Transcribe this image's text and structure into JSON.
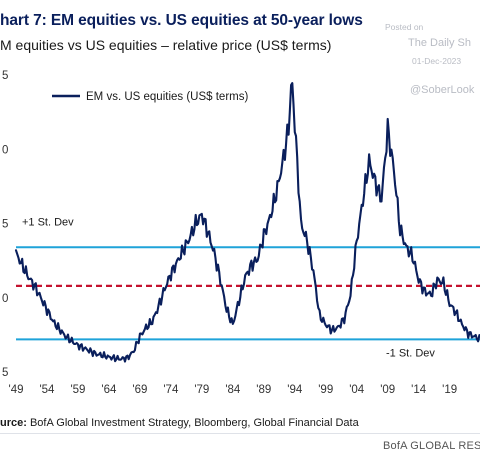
{
  "header": {
    "title": "hart 7: EM equities vs. US equities at 50-year lows",
    "subtitle": "M equities vs US equities – relative price (US$ terms)"
  },
  "watermark": {
    "posted": "Posted on",
    "site": "The Daily Sh",
    "date": "01-Dec-2023",
    "handle": "@SoberLook"
  },
  "source": {
    "label": "urce:",
    "text": " BofA Global Investment Strategy, Bloomberg, Global Financial Data"
  },
  "footer": {
    "brand": "BofA GLOBAL RESEA"
  },
  "colors": {
    "title": "#0a1f5c",
    "series": "#0a1f5c",
    "stdev_line": "#1fa3d9",
    "mean_line": "#c4122f"
  },
  "chart_data": {
    "type": "line",
    "title": "hart 7: EM equities vs. US equities at 50-year lows",
    "xlabel": "",
    "ylabel": "",
    "x_tick_labels": [
      "'49",
      "'54",
      "'59",
      "'64",
      "'69",
      "'74",
      "'79",
      "'84",
      "'89",
      "'94",
      "'99",
      "'04",
      "'09",
      "'14",
      "'19"
    ],
    "y_tick_labels": [
      "5",
      "0",
      "5",
      "0",
      "5"
    ],
    "xlim": [
      1949,
      2023.9
    ],
    "ylim": [
      0.0,
      5.0
    ],
    "grid": false,
    "legend": {
      "position": "top-left",
      "entries": [
        "EM vs. US equities (US$ terms)"
      ]
    },
    "series": [
      {
        "name": "EM vs. US equities (US$ terms)",
        "x": [
          1949,
          1950,
          1951,
          1952,
          1953,
          1954,
          1955,
          1956,
          1957,
          1958,
          1959,
          1960,
          1961,
          1962,
          1963,
          1964,
          1965,
          1966,
          1967,
          1968,
          1969,
          1970,
          1971,
          1972,
          1973,
          1974,
          1975,
          1976,
          1977,
          1978,
          1979,
          1980,
          1981,
          1982,
          1983,
          1984,
          1985,
          1986,
          1987,
          1988,
          1989,
          1990,
          1991,
          1992,
          1993,
          1993.5,
          1994,
          1995,
          1996,
          1997,
          1998,
          1999,
          2000,
          2001,
          2002,
          2003,
          2004,
          2005,
          2006,
          2007,
          2008,
          2009,
          2010,
          2011,
          2012,
          2013,
          2014,
          2015,
          2016,
          2017,
          2018,
          2019,
          2020,
          2021,
          2022,
          2023.9
        ],
        "y": [
          2.0,
          1.8,
          1.6,
          1.45,
          1.25,
          1.05,
          0.85,
          0.72,
          0.6,
          0.52,
          0.45,
          0.4,
          0.35,
          0.3,
          0.28,
          0.25,
          0.23,
          0.22,
          0.24,
          0.35,
          0.6,
          0.75,
          0.85,
          1.1,
          1.4,
          1.65,
          1.85,
          2.05,
          2.25,
          2.5,
          2.65,
          2.35,
          2.0,
          1.55,
          1.05,
          0.8,
          1.2,
          1.6,
          1.8,
          1.9,
          2.3,
          2.6,
          3.0,
          3.5,
          4.1,
          4.95,
          4.2,
          2.5,
          2.2,
          1.7,
          0.95,
          0.8,
          0.7,
          0.75,
          0.9,
          1.3,
          2.2,
          2.9,
          3.55,
          3.2,
          2.9,
          4.1,
          3.4,
          2.4,
          2.1,
          1.95,
          1.55,
          1.35,
          1.3,
          1.55,
          1.5,
          1.15,
          1.0,
          0.8,
          0.65,
          0.55
        ]
      }
    ],
    "reference_lines": [
      {
        "label": "+1 St. Dev",
        "y": 2.1,
        "style": "solid",
        "color": "#1fa3d9"
      },
      {
        "label": "",
        "y": 1.45,
        "style": "dashed",
        "color": "#c4122f"
      },
      {
        "label": "-1 St. Dev",
        "y": 0.55,
        "style": "solid",
        "color": "#1fa3d9"
      }
    ]
  }
}
